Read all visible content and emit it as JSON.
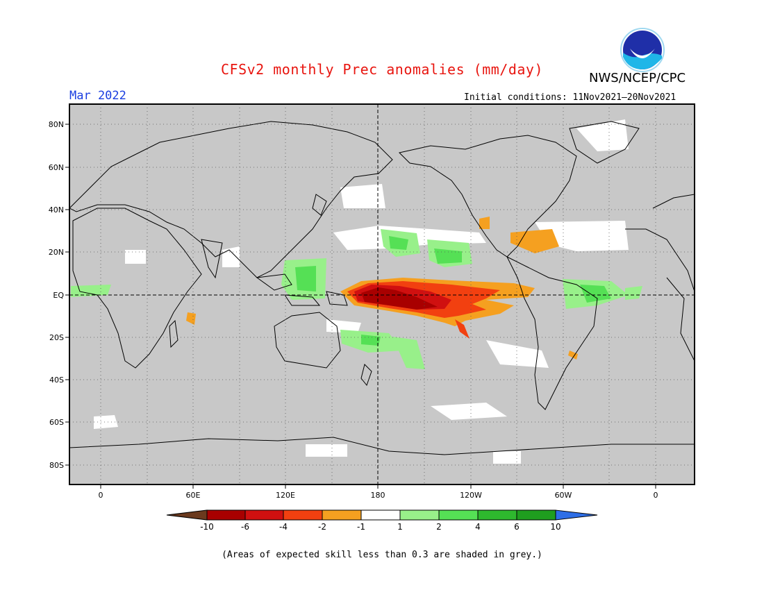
{
  "title": "CFSv2 monthly Prec anomalies (mm/day)",
  "agency": "NWS/NCEP/CPC",
  "logo_text": "NOAA",
  "valid_month": "Mar 2022",
  "initial_conditions": "Initial conditions: 11Nov2021—20Nov2021",
  "lat_labels": [
    "80N",
    "60N",
    "40N",
    "20N",
    "EQ",
    "20S",
    "40S",
    "60S",
    "80S"
  ],
  "lon_labels": [
    "0",
    "60E",
    "120E",
    "180",
    "120W",
    "60W",
    "0"
  ],
  "colorbar": {
    "colors": [
      "#6b3a1e",
      "#a80000",
      "#d01010",
      "#f24010",
      "#f5a020",
      "#ffffff",
      "#98f08a",
      "#55e055",
      "#2eb82e",
      "#1f9e1f",
      "#2e6ee6"
    ],
    "tick_labels": [
      "-10",
      "-6",
      "-4",
      "-2",
      "-1",
      "1",
      "2",
      "4",
      "6",
      "10"
    ]
  },
  "background_color": "#c8c8c8",
  "footnote": "(Areas of expected skill less than 0.3 are shaded in grey.)"
}
